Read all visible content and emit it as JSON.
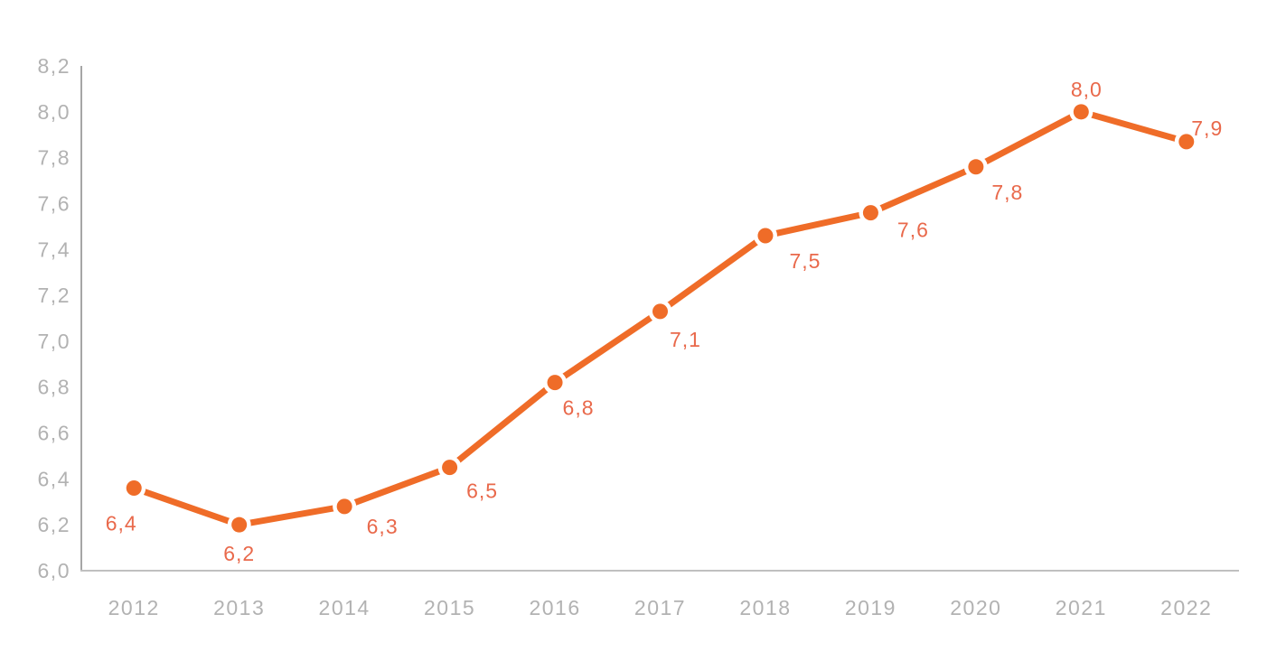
{
  "chart_data": {
    "type": "line",
    "title": "",
    "xlabel": "",
    "ylabel": "",
    "categories": [
      "2012",
      "2013",
      "2014",
      "2015",
      "2016",
      "2017",
      "2018",
      "2019",
      "2020",
      "2021",
      "2022"
    ],
    "series": [
      {
        "name": "main-series",
        "values": [
          6.36,
          6.2,
          6.28,
          6.45,
          6.82,
          7.13,
          7.46,
          7.56,
          7.76,
          8.0,
          7.87
        ],
        "point_labels": [
          "6,4",
          "6,2",
          "6,3",
          "6,5",
          "6,8",
          "7,1",
          "7,5",
          "7,6",
          "7,8",
          "8,0",
          "7,9"
        ]
      }
    ],
    "ylim": [
      6.0,
      8.2
    ],
    "y_tick_step": 0.2,
    "y_tick_labels": [
      "6,0",
      "6,2",
      "6,4",
      "6,6",
      "6,8",
      "7,0",
      "7,2",
      "7,4",
      "7,6",
      "7,8",
      "8,0",
      "8,2"
    ],
    "decimal_separator": ",",
    "grid": false,
    "legend": false
  },
  "colors": {
    "background": "#ffffff",
    "line": "#EF6C28",
    "marker": "#EF6C28",
    "marker_halo": "#ffffff",
    "point_label": "#E9694B",
    "tick_text": "#B2B2B2",
    "axis_vertical": "#A6A6A6",
    "axis_horizontal": "#C0C0C0"
  }
}
